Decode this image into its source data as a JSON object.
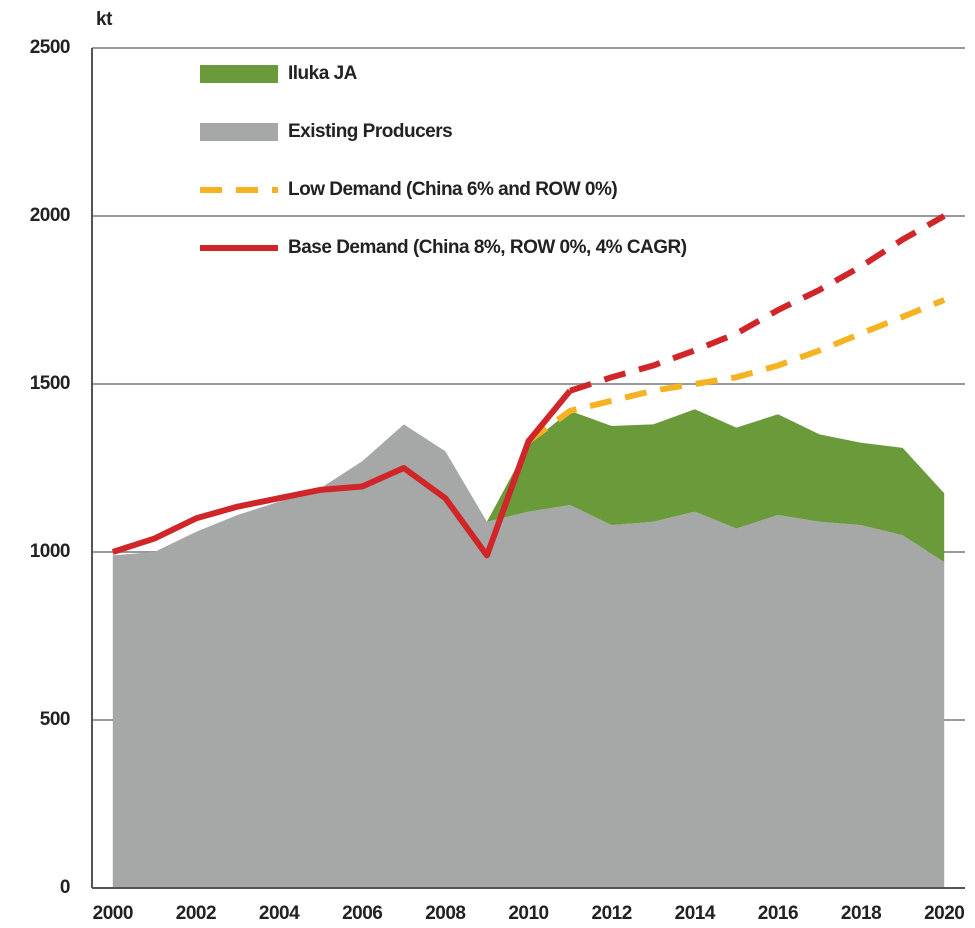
{
  "chart_data": {
    "type": "area",
    "y_unit": "kt",
    "x": [
      2000,
      2001,
      2002,
      2003,
      2004,
      2005,
      2006,
      2007,
      2008,
      2009,
      2010,
      2011,
      2012,
      2013,
      2014,
      2015,
      2016,
      2017,
      2018,
      2019,
      2020
    ],
    "xlim": [
      1999.5,
      2020.5
    ],
    "xticks": [
      2000,
      2002,
      2004,
      2006,
      2008,
      2010,
      2012,
      2014,
      2016,
      2018,
      2020
    ],
    "ylim": [
      0,
      2500
    ],
    "yticks": [
      0,
      500,
      1000,
      1500,
      2000,
      2500
    ],
    "grid": true,
    "legend": "upper left",
    "series": [
      {
        "name": "Iluka JA",
        "kind": "stacked-area",
        "color": "#6a9a3a",
        "values": [
          null,
          null,
          null,
          null,
          null,
          null,
          null,
          null,
          null,
          0,
          200,
          280,
          295,
          290,
          305,
          300,
          300,
          260,
          245,
          260,
          205
        ]
      },
      {
        "name": "Existing Producers",
        "kind": "area",
        "color": "#a6a8a7",
        "values": [
          990,
          1000,
          1060,
          1110,
          1150,
          1190,
          1270,
          1380,
          1300,
          1090,
          1120,
          1140,
          1080,
          1090,
          1120,
          1070,
          1110,
          1090,
          1080,
          1050,
          970
        ]
      },
      {
        "name": "Low Demand (China 6% and ROW 0%)",
        "kind": "line",
        "dashed": true,
        "color": "#f5b324",
        "values": [
          null,
          null,
          null,
          null,
          null,
          null,
          null,
          null,
          null,
          null,
          1330,
          1420,
          1450,
          1480,
          1500,
          1520,
          1555,
          1600,
          1650,
          1700,
          1750
        ]
      },
      {
        "name": "Base Demand (China 8%, ROW 0%, 4% CAGR)",
        "kind": "line",
        "dashed_from": 2011,
        "color": "#d0262a",
        "values": [
          1000,
          1040,
          1100,
          1135,
          1160,
          1185,
          1195,
          1250,
          1160,
          990,
          1330,
          1480,
          1520,
          1555,
          1600,
          1650,
          1720,
          1780,
          1850,
          1930,
          2000
        ]
      }
    ]
  }
}
